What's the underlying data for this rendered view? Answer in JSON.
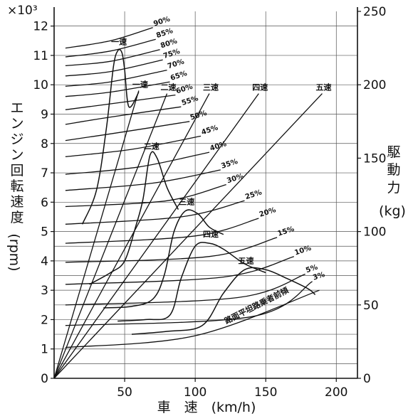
{
  "chart_data": {
    "type": "line",
    "title": "",
    "xlabel": "車　速　(km/h)",
    "ylabel_left": "エンジン回転速度",
    "ylabel_left_unit": "(rpm)",
    "ylabel_left_multiplier": "×10³",
    "ylabel_right": "駆動力",
    "ylabel_right_unit": "(kg)",
    "xlim": [
      0,
      215
    ],
    "ylim_left": [
      0,
      12.5
    ],
    "ylim_right": [
      0,
      250
    ],
    "x_ticks": [
      "50",
      "100",
      "150",
      "200"
    ],
    "y_left_ticks": [
      "0",
      "1",
      "2",
      "3",
      "4",
      "5",
      "6",
      "7",
      "8",
      "9",
      "10",
      "11",
      "12"
    ],
    "y_right_ticks": [
      "0",
      "50",
      "100",
      "150",
      "200",
      "250"
    ],
    "grid": true,
    "throttle_curves": [
      {
        "label": "90%",
        "x": [
          8,
          40,
          70
        ],
        "y": [
          11.25,
          11.5,
          11.95
        ]
      },
      {
        "label": "85%",
        "x": [
          8,
          40,
          72
        ],
        "y": [
          10.95,
          11.15,
          11.55
        ]
      },
      {
        "label": "80%",
        "x": [
          8,
          40,
          75
        ],
        "y": [
          10.65,
          10.8,
          11.2
        ]
      },
      {
        "label": "75%",
        "x": [
          8,
          40,
          77
        ],
        "y": [
          10.3,
          10.45,
          10.85
        ]
      },
      {
        "label": "70%",
        "x": [
          8,
          40,
          80
        ],
        "y": [
          9.95,
          10.1,
          10.5
        ]
      },
      {
        "label": "65%",
        "x": [
          8,
          40,
          82
        ],
        "y": [
          9.6,
          9.75,
          10.1
        ]
      },
      {
        "label": "60%",
        "x": [
          8,
          40,
          86
        ],
        "y": [
          9.15,
          9.35,
          9.65
        ]
      },
      {
        "label": "55%",
        "x": [
          8,
          40,
          90
        ],
        "y": [
          8.65,
          8.9,
          9.25
        ]
      },
      {
        "label": "50%",
        "x": [
          8,
          50,
          96
        ],
        "y": [
          8.1,
          8.4,
          8.75
        ]
      },
      {
        "label": "45%",
        "x": [
          8,
          55,
          104
        ],
        "y": [
          7.55,
          7.8,
          8.25
        ]
      },
      {
        "label": "40%",
        "x": [
          8,
          60,
          110
        ],
        "y": [
          6.95,
          7.2,
          7.7
        ]
      },
      {
        "label": "35%",
        "x": [
          8,
          70,
          118
        ],
        "y": [
          6.4,
          6.65,
          7.1
        ]
      },
      {
        "label": "30%",
        "x": [
          8,
          80,
          122
        ],
        "y": [
          5.85,
          6.05,
          6.6
        ]
      },
      {
        "label": "25%",
        "x": [
          8,
          90,
          135
        ],
        "y": [
          5.25,
          5.5,
          6.05
        ]
      },
      {
        "label": "20%",
        "x": [
          8,
          100,
          145
        ],
        "y": [
          4.6,
          4.85,
          5.45
        ]
      },
      {
        "label": "15%",
        "x": [
          8,
          110,
          158
        ],
        "y": [
          3.95,
          4.15,
          4.8
        ]
      },
      {
        "label": "10%",
        "x": [
          8,
          120,
          170
        ],
        "y": [
          3.2,
          3.45,
          4.15
        ]
      },
      {
        "label": "5%",
        "x": [
          8,
          130,
          178
        ],
        "y": [
          2.5,
          2.75,
          3.55
        ]
      },
      {
        "label": "3%",
        "x": [
          8,
          140,
          183
        ],
        "y": [
          1.8,
          2.1,
          3.3
        ]
      },
      {
        "label": "路面平坦路乗者前傾",
        "x": [
          8,
          100,
          188
        ],
        "y": [
          1.05,
          1.45,
          3.0
        ]
      }
    ],
    "gear_speed_lines": [
      {
        "label": "一速",
        "x_end": 60,
        "y_end": 9.8
      },
      {
        "label": "二速",
        "x_end": 80,
        "y_end": 9.7
      },
      {
        "label": "三速",
        "x_end": 110,
        "y_end": 9.7
      },
      {
        "label": "四速",
        "x_end": 145,
        "y_end": 9.7
      },
      {
        "label": "五速",
        "x_end": 190,
        "y_end": 9.7
      }
    ],
    "tractive_force_curves": [
      {
        "label": "一速",
        "x": [
          20,
          30,
          37,
          42,
          45,
          48,
          50,
          53,
          60
        ],
        "y_right": [
          105,
          128,
          170,
          212,
          223,
          222,
          210,
          185,
          195
        ]
      },
      {
        "label": "二速",
        "x": [
          25,
          40,
          50,
          58,
          63,
          68,
          73,
          80,
          88
        ],
        "y_right": [
          64,
          72,
          80,
          104,
          122,
          152,
          150,
          130,
          115
        ]
      },
      {
        "label": "三速",
        "x": [
          35,
          55,
          70,
          78,
          85,
          93,
          102,
          110,
          120
        ],
        "y_right": [
          48,
          49,
          54,
          70,
          100,
          114,
          112,
          103,
          98
        ]
      },
      {
        "label": "四速",
        "x": [
          45,
          65,
          82,
          90,
          100,
          110,
          120,
          135,
          150
        ],
        "y_right": [
          39,
          40,
          43,
          68,
          90,
          92,
          88,
          78,
          72
        ]
      },
      {
        "label": "五速",
        "x": [
          55,
          80,
          105,
          120,
          135,
          150,
          165,
          180,
          185
        ],
        "y_right": [
          30,
          32,
          36,
          58,
          74,
          74,
          68,
          61,
          57
        ]
      }
    ]
  }
}
